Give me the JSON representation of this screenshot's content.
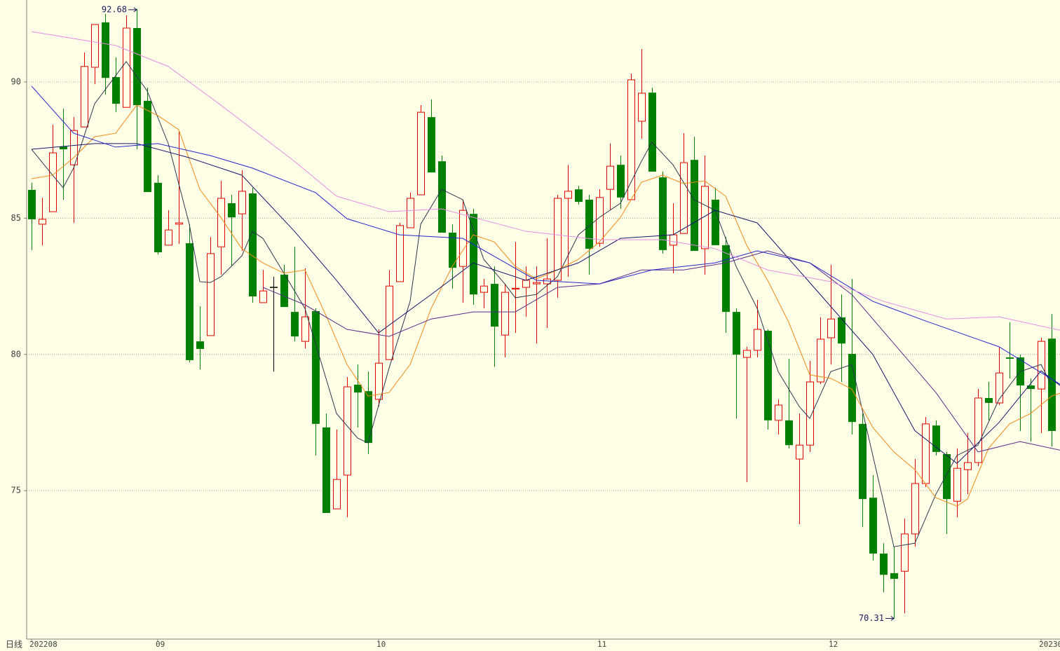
{
  "chart_data": {
    "type": "candlestick",
    "period_label": "日线",
    "categories": [
      "202208",
      null,
      null,
      null,
      null,
      null,
      null,
      null,
      null,
      null,
      null,
      null,
      "09",
      null,
      null,
      null,
      null,
      null,
      null,
      null,
      null,
      null,
      null,
      null,
      null,
      null,
      null,
      null,
      null,
      null,
      null,
      null,
      null,
      "10",
      null,
      null,
      null,
      null,
      null,
      null,
      null,
      null,
      null,
      null,
      null,
      null,
      null,
      null,
      null,
      null,
      null,
      null,
      null,
      null,
      "11",
      null,
      null,
      null,
      null,
      null,
      null,
      null,
      null,
      null,
      null,
      null,
      null,
      null,
      null,
      null,
      null,
      null,
      null,
      null,
      null,
      null,
      "12",
      null,
      null,
      null,
      null,
      null,
      null,
      null,
      null,
      null,
      null,
      null,
      null,
      null,
      null,
      null,
      null,
      null,
      null,
      null,
      "20230",
      null
    ],
    "open": [
      86.04,
      84.78,
      85.24,
      87.63,
      86.96,
      88.35,
      90.54,
      92.19,
      90.18,
      89.07,
      91.98,
      89.31,
      86.3,
      84.01,
      84.78,
      84.08,
      80.48,
      80.69,
      83.95,
      85.55,
      85.16,
      85.91,
      81.9,
      82.46,
      82.93,
      81.56,
      80.48,
      81.59,
      77.32,
      74.33,
      75.57,
      78.89,
      78.65,
      78.35,
      79.81,
      82.67,
      84.65,
      85.86,
      88.71,
      87.09,
      84.47,
      83.23,
      85.16,
      82.28,
      82.59,
      80.71,
      82.4,
      82.46,
      82.59,
      82.59,
      82.72,
      85.73,
      86.06,
      85.68,
      84.08,
      86.06,
      86.96,
      85.68,
      88.56,
      89.61,
      86.5,
      84.01,
      84.44,
      87.14,
      83.88,
      85.68,
      84.01,
      81.56,
      79.89,
      80.15,
      80.87,
      77.58,
      77.58,
      76.16,
      76.67,
      78.99,
      80.61,
      81.36,
      80.02,
      77.45,
      74.74,
      72.69,
      71.97,
      72.04,
      73.41,
      75.26,
      77.39,
      76.34,
      74.61,
      75.77,
      76.03,
      78.4,
      78.22,
      79.89,
      79.89,
      78.86,
      78.73,
      80.58
    ],
    "high": [
      86.3,
      85.75,
      88.43,
      89.02,
      88.71,
      91.08,
      92.11,
      92.5,
      90.9,
      92.44,
      92.68,
      89.79,
      86.58,
      85.29,
      88.17,
      84.78,
      81.77,
      84.31,
      86.37,
      85.86,
      86.76,
      86.12,
      83.1,
      82.85,
      83.29,
      83.95,
      83.16,
      81.69,
      77.83,
      77.24,
      79.17,
      79.63,
      79.37,
      80.92,
      83.1,
      84.83,
      85.94,
      89.15,
      89.36,
      87.3,
      84.78,
      85.68,
      85.34,
      82.77,
      83.23,
      82.59,
      84.13,
      83.23,
      83.23,
      84.26,
      85.86,
      86.96,
      86.19,
      85.86,
      86.06,
      87.74,
      87.3,
      90.31,
      91.21,
      89.79,
      86.71,
      85.55,
      88.12,
      87.99,
      87.3,
      86.12,
      84.31,
      81.69,
      80.28,
      82.0,
      80.92,
      78.35,
      79.84,
      77.83,
      79.76,
      81.36,
      83.29,
      82.2,
      82.77,
      77.83,
      75.57,
      73.07,
      72.94,
      73.97,
      76.16,
      77.7,
      77.58,
      76.42,
      76.55,
      77.11,
      78.73,
      78.99,
      80.28,
      81.18,
      79.99,
      79.12,
      80.61,
      81.48
    ],
    "low": [
      83.83,
      84.0,
      85.24,
      85.68,
      84.83,
      88.35,
      89.92,
      89.54,
      88.89,
      89.07,
      87.53,
      85.96,
      83.67,
      84.01,
      84.06,
      79.71,
      79.45,
      80.69,
      82.93,
      83.23,
      83.8,
      81.9,
      81.9,
      79.37,
      81.74,
      80.48,
      80.22,
      76.29,
      74.18,
      74.33,
      74.02,
      77.32,
      76.34,
      78.09,
      79.81,
      82.67,
      84.65,
      85.86,
      86.68,
      84.47,
      82.41,
      81.9,
      81.82,
      81.69,
      79.55,
      79.89,
      80.79,
      81.38,
      80.4,
      80.97,
      82.08,
      82.85,
      85.5,
      82.93,
      83.95,
      85.29,
      85.34,
      85.68,
      87.92,
      86.71,
      83.7,
      82.98,
      84.44,
      83.8,
      82.93,
      84.01,
      80.79,
      77.65,
      75.31,
      79.89,
      77.24,
      77.06,
      76.55,
      73.77,
      76.42,
      78.91,
      79.63,
      78.99,
      77.06,
      73.66,
      72.43,
      71.27,
      70.31,
      70.5,
      72.94,
      75.13,
      76.29,
      73.41,
      74.02,
      74.87,
      75.9,
      77.58,
      78.14,
      79.12,
      77.19,
      76.8,
      77.11,
      76.62
    ],
    "close": [
      84.96,
      84.96,
      87.4,
      87.53,
      88.22,
      90.57,
      92.11,
      90.15,
      89.2,
      91.98,
      89.15,
      85.96,
      83.75,
      84.57,
      84.83,
      79.79,
      80.2,
      83.7,
      85.73,
      85.03,
      85.99,
      82.13,
      82.33,
      82.46,
      81.74,
      80.66,
      81.38,
      77.45,
      74.18,
      75.41,
      78.81,
      78.6,
      76.75,
      79.68,
      82.51,
      84.73,
      85.73,
      88.89,
      86.68,
      84.47,
      83.18,
      85.29,
      82.2,
      82.51,
      81.02,
      82.28,
      82.43,
      82.72,
      82.64,
      82.77,
      85.73,
      85.99,
      85.6,
      83.88,
      85.76,
      86.91,
      85.76,
      90.08,
      89.59,
      86.71,
      83.83,
      84.39,
      87.04,
      83.8,
      86.17,
      84.01,
      81.56,
      79.99,
      80.15,
      80.92,
      77.58,
      78.14,
      76.67,
      76.67,
      78.99,
      80.56,
      81.3,
      80.4,
      77.52,
      74.69,
      72.69,
      71.91,
      71.76,
      73.41,
      75.26,
      77.45,
      76.42,
      74.69,
      75.82,
      76.03,
      78.4,
      78.22,
      79.32,
      79.84,
      78.86,
      78.73,
      80.48,
      77.19
    ],
    "up_color": "#e00000",
    "down_color": "#008000",
    "flat_color": "#000000",
    "lines": [
      {
        "color": "#2a3550",
        "x": [
          0,
          2,
          3,
          4,
          6,
          9,
          11,
          13,
          15,
          16,
          17,
          18,
          20,
          21,
          22,
          24,
          26,
          28,
          29,
          31,
          32,
          34,
          36,
          37,
          39,
          41,
          43,
          45,
          46,
          48,
          50,
          52,
          54,
          56,
          58,
          59,
          61,
          63,
          65,
          67,
          69,
          71,
          73,
          74,
          76,
          78,
          80,
          82,
          84,
          86,
          88,
          90,
          92,
          94,
          96,
          97
        ],
        "values": [
          87.53,
          86.58,
          86.12,
          86.84,
          89.2,
          90.75,
          89.67,
          87.74,
          84.78,
          82.67,
          82.64,
          82.85,
          83.62,
          84.52,
          84.26,
          82.98,
          81.69,
          79.12,
          77.83,
          76.93,
          76.75,
          79.5,
          81.95,
          84.78,
          86.06,
          85.68,
          83.49,
          82.59,
          82.08,
          82.2,
          82.85,
          84.39,
          85.03,
          85.55,
          87.09,
          87.79,
          86.96,
          85.68,
          85.29,
          83.23,
          81.69,
          79.37,
          78.09,
          77.65,
          79.37,
          79.63,
          76.29,
          72.94,
          73.07,
          74.87,
          76.29,
          76.67,
          78.35,
          79.37,
          79.63,
          78.86
        ]
      },
      {
        "color": "#f08a10",
        "x": [
          0,
          2,
          4,
          6,
          8,
          10,
          12,
          14,
          16,
          18,
          20,
          22,
          24,
          26,
          28,
          30,
          32,
          34,
          36,
          38,
          40,
          42,
          44,
          46,
          48,
          50,
          52,
          54,
          56,
          58,
          60,
          62,
          64,
          66,
          68,
          70,
          72,
          74,
          76,
          78,
          80,
          82,
          84,
          86,
          88,
          89,
          91,
          93,
          95,
          97,
          98
        ],
        "values": [
          86.45,
          86.58,
          87.22,
          87.99,
          88.12,
          89.15,
          88.77,
          88.25,
          86.06,
          85.03,
          83.88,
          83.36,
          82.98,
          83.1,
          81.43,
          79.63,
          78.47,
          78.6,
          79.63,
          81.69,
          83.23,
          84.39,
          84.13,
          83.23,
          82.77,
          83.1,
          83.49,
          84.13,
          85.03,
          86.32,
          86.58,
          86.27,
          86.37,
          85.81,
          84.01,
          82.72,
          81.18,
          79.25,
          79.12,
          78.73,
          77.32,
          76.42,
          75.77,
          74.74,
          74.43,
          74.69,
          76.55,
          77.45,
          77.83,
          78.47,
          78.6
        ]
      },
      {
        "color": "#14146e",
        "x": [
          0,
          6,
          10,
          15,
          20,
          25,
          29,
          33,
          38,
          42,
          47,
          52,
          56,
          61,
          65,
          69,
          75,
          80,
          84,
          88,
          92,
          96,
          98
        ],
        "values": [
          87.53,
          87.74,
          87.74,
          87.22,
          86.58,
          84.52,
          82.72,
          80.79,
          82.2,
          83.36,
          82.72,
          83.36,
          84.26,
          84.39,
          85.29,
          84.83,
          82.2,
          80.0,
          77.2,
          76.0,
          77.5,
          79.4,
          78.8
        ]
      },
      {
        "color": "#5a2a8a",
        "x": [
          22,
          26,
          30,
          34,
          38,
          42,
          46,
          50,
          54,
          58,
          62,
          66,
          70,
          74,
          78,
          82,
          86,
          90,
          94,
          98
        ],
        "values": [
          82.46,
          81.82,
          80.92,
          80.66,
          81.3,
          81.56,
          81.56,
          82.46,
          82.59,
          83.1,
          83.1,
          83.36,
          83.8,
          83.36,
          82.2,
          80.4,
          78.6,
          76.42,
          76.8,
          76.47
        ]
      },
      {
        "color": "#2424d0",
        "x": [
          0,
          4,
          8,
          12,
          17,
          21,
          27,
          30,
          35,
          41,
          48,
          54,
          59,
          65,
          69,
          74,
          80,
          85,
          92,
          98
        ],
        "values": [
          89.85,
          88.12,
          87.61,
          87.74,
          87.3,
          86.84,
          85.94,
          84.98,
          84.39,
          84.26,
          82.72,
          82.59,
          83.1,
          83.36,
          83.8,
          83.36,
          81.95,
          81.23,
          80.28,
          78.86
        ]
      },
      {
        "color": "#e48ee4",
        "x": [
          0,
          8,
          13,
          18,
          25,
          29,
          34,
          39,
          47,
          54,
          60,
          65,
          70,
          76,
          81,
          87,
          92,
          98
        ],
        "values": [
          91.85,
          91.34,
          90.57,
          89.15,
          87.09,
          85.81,
          85.24,
          85.34,
          84.52,
          84.21,
          84.21,
          83.88,
          83.1,
          82.67,
          81.95,
          81.3,
          81.38,
          80.87
        ]
      }
    ],
    "ylim": [
      69.55,
      93.01
    ],
    "yticks": [
      75,
      80,
      85,
      90
    ],
    "grid": true,
    "background": "#ffffe8"
  }
}
